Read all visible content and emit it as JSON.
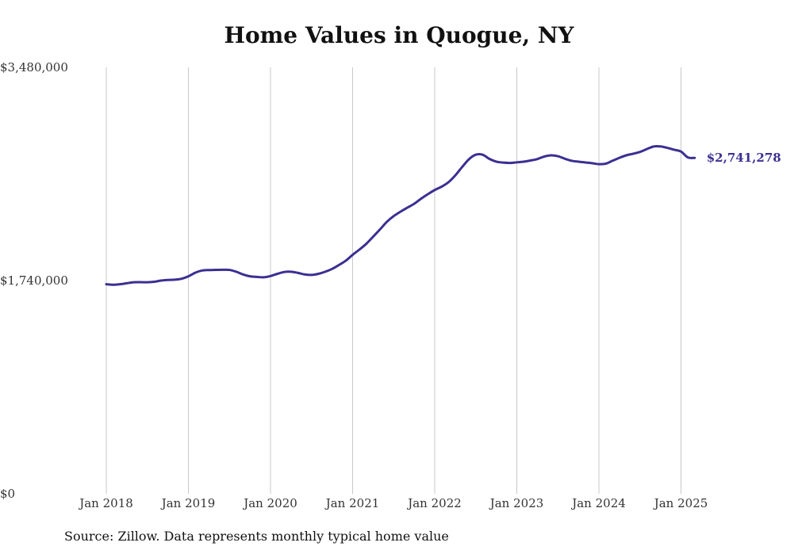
{
  "colors": {
    "line": "#3b2f92",
    "grid": "#c8c8c8",
    "text": "#333333"
  },
  "chart_data": {
    "type": "line",
    "title": "Home Values in Quogue, NY",
    "source": "Source: Zillow. Data represents monthly typical home value",
    "xlabel": "",
    "ylabel": "",
    "ylim": [
      0,
      3480000
    ],
    "y_ticks": [
      0,
      1740000,
      3480000
    ],
    "y_tick_labels": [
      "$0",
      "$1,740,000",
      "$3,480,000"
    ],
    "x_ticks": [
      "2018-01",
      "2019-01",
      "2020-01",
      "2021-01",
      "2022-01",
      "2023-01",
      "2024-01",
      "2025-01"
    ],
    "x_tick_labels": [
      "Jan 2018",
      "Jan 2019",
      "Jan 2020",
      "Jan 2021",
      "Jan 2022",
      "Jan 2023",
      "Jan 2024",
      "Jan 2025"
    ],
    "grid": "vertical",
    "end_label": "$2,741,278",
    "series": [
      {
        "x": [
          "2018-01",
          "2018-02",
          "2018-03",
          "2018-04",
          "2018-05",
          "2018-06",
          "2018-07",
          "2018-08",
          "2018-09",
          "2018-10",
          "2018-11",
          "2018-12",
          "2019-01",
          "2019-02",
          "2019-03",
          "2019-04",
          "2019-05",
          "2019-06",
          "2019-07",
          "2019-08",
          "2019-09",
          "2019-10",
          "2019-11",
          "2019-12",
          "2020-01",
          "2020-02",
          "2020-03",
          "2020-04",
          "2020-05",
          "2020-06",
          "2020-07",
          "2020-08",
          "2020-09",
          "2020-10",
          "2020-11",
          "2020-12",
          "2021-01",
          "2021-02",
          "2021-03",
          "2021-04",
          "2021-05",
          "2021-06",
          "2021-07",
          "2021-08",
          "2021-09",
          "2021-10",
          "2021-11",
          "2021-12",
          "2022-01",
          "2022-02",
          "2022-03",
          "2022-04",
          "2022-05",
          "2022-06",
          "2022-07",
          "2022-08",
          "2022-09",
          "2022-10",
          "2022-11",
          "2022-12",
          "2023-01",
          "2023-02",
          "2023-03",
          "2023-04",
          "2023-05",
          "2023-06",
          "2023-07",
          "2023-08",
          "2023-09",
          "2023-10",
          "2023-11",
          "2023-12",
          "2024-01",
          "2024-02",
          "2024-03",
          "2024-04",
          "2024-05",
          "2024-06",
          "2024-07",
          "2024-08",
          "2024-09",
          "2024-10",
          "2024-11",
          "2024-12",
          "2025-01",
          "2025-02",
          "2025-03"
        ],
        "values": [
          1710000,
          1706000,
          1710000,
          1718000,
          1726000,
          1727000,
          1726000,
          1730000,
          1740000,
          1745000,
          1747000,
          1755000,
          1775000,
          1804000,
          1822000,
          1826000,
          1827000,
          1828000,
          1827000,
          1812000,
          1790000,
          1775000,
          1770000,
          1767000,
          1777000,
          1795000,
          1810000,
          1812000,
          1803000,
          1790000,
          1786000,
          1795000,
          1812000,
          1835000,
          1867000,
          1902000,
          1950000,
          1993000,
          2040000,
          2098000,
          2157000,
          2219000,
          2266000,
          2302000,
          2335000,
          2367000,
          2408000,
          2445000,
          2479000,
          2506000,
          2542000,
          2598000,
          2666000,
          2730000,
          2767000,
          2767000,
          2733000,
          2711000,
          2703000,
          2700000,
          2705000,
          2710000,
          2720000,
          2732000,
          2752000,
          2762000,
          2755000,
          2735000,
          2718000,
          2710000,
          2704000,
          2698000,
          2690000,
          2694000,
          2718000,
          2742000,
          2762000,
          2775000,
          2790000,
          2813000,
          2834000,
          2835000,
          2823000,
          2808000,
          2793000,
          2745000,
          2741278
        ]
      }
    ]
  }
}
